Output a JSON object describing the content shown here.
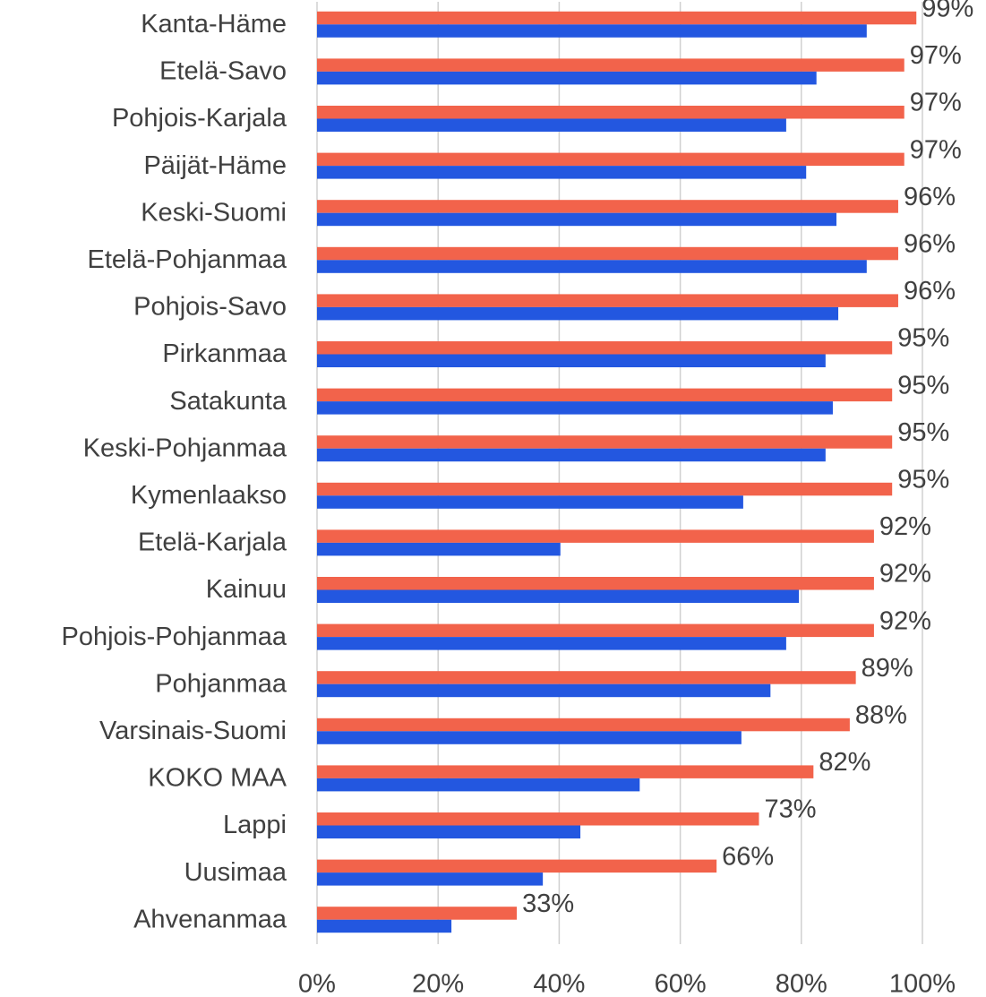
{
  "chart_data": {
    "type": "bar",
    "orientation": "horizontal",
    "categories": [
      "Kanta-Häme",
      "Etelä-Savo",
      "Pohjois-Karjala",
      "Päijät-Häme",
      "Keski-Suomi",
      "Etelä-Pohjanmaa",
      "Pohjois-Savo",
      "Pirkanmaa",
      "Satakunta",
      "Keski-Pohjanmaa",
      "Kymenlaakso",
      "Etelä-Karjala",
      "Kainuu",
      "Pohjois-Pohjanmaa",
      "Pohjanmaa",
      "Varsinais-Suomi",
      "KOKO MAA",
      "Lappi",
      "Uusimaa",
      "Ahvenanmaa"
    ],
    "series": [
      {
        "color": "#f2634b",
        "values": [
          99,
          97,
          97,
          97,
          96,
          96,
          96,
          95,
          95,
          95,
          95,
          92,
          92,
          92,
          89,
          88,
          82,
          73,
          66,
          33
        ],
        "value_labels": [
          "99%",
          "97%",
          "97%",
          "97%",
          "96%",
          "96%",
          "96%",
          "95%",
          "95%",
          "95%",
          "95%",
          "92%",
          "92%",
          "92%",
          "89%",
          "88%",
          "82%",
          "73%",
          "66%",
          "33%"
        ]
      },
      {
        "color": "#2357e0",
        "values": [
          90.8,
          82.5,
          77.5,
          80.8,
          85.8,
          90.8,
          86.1,
          84.0,
          85.2,
          84.0,
          70.4,
          40.2,
          79.6,
          77.5,
          74.9,
          70.1,
          53.3,
          43.5,
          37.3,
          22.2
        ]
      }
    ],
    "xlim": [
      0,
      100
    ],
    "xticks": [
      {
        "value": 0,
        "label": "0%"
      },
      {
        "value": 20,
        "label": "20%"
      },
      {
        "value": 40,
        "label": "40%"
      },
      {
        "value": 60,
        "label": "60%"
      },
      {
        "value": 80,
        "label": "80%"
      },
      {
        "value": 100,
        "label": "100%"
      }
    ],
    "grid": true
  }
}
